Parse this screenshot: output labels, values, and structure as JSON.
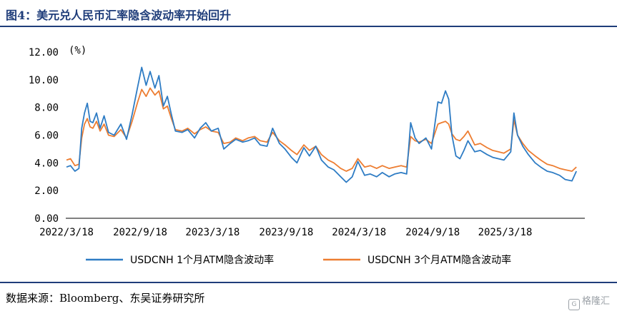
{
  "header": {
    "title": "图4：美元兑人民币汇率隐含波动率开始回升"
  },
  "footer": {
    "source": "数据来源：Bloomberg、东吴证券研究所",
    "watermark": "格隆汇"
  },
  "colors": {
    "title": "#1f3d7a",
    "series_1m": "#2e7cc4",
    "series_3m": "#ed7d31"
  },
  "chart_data": {
    "type": "line",
    "unit": "(%)",
    "ylim": [
      0,
      12
    ],
    "yticks": [
      "12.00",
      "10.00",
      "8.00",
      "6.00",
      "4.00",
      "2.00",
      "0.00"
    ],
    "xticks": [
      "2022/3/18",
      "2022/9/18",
      "2023/3/18",
      "2023/9/18",
      "2024/3/18",
      "2024/9/18",
      "2025/3/18"
    ],
    "grid": false,
    "legend_position": "bottom",
    "series": [
      {
        "name": "USDCNH 1个月ATM隐含波动率",
        "color": "#2e7cc4",
        "points": [
          [
            "2022-03-18",
            3.7
          ],
          [
            "2022-03-28",
            3.8
          ],
          [
            "2022-04-08",
            3.4
          ],
          [
            "2022-04-18",
            3.6
          ],
          [
            "2022-04-25",
            6.5
          ],
          [
            "2022-05-02",
            7.6
          ],
          [
            "2022-05-09",
            8.3
          ],
          [
            "2022-05-16",
            7.0
          ],
          [
            "2022-05-23",
            6.9
          ],
          [
            "2022-06-01",
            7.6
          ],
          [
            "2022-06-10",
            6.5
          ],
          [
            "2022-06-20",
            7.4
          ],
          [
            "2022-07-01",
            6.2
          ],
          [
            "2022-07-15",
            6.0
          ],
          [
            "2022-08-01",
            6.8
          ],
          [
            "2022-08-15",
            5.7
          ],
          [
            "2022-08-29",
            7.5
          ],
          [
            "2022-09-12",
            9.5
          ],
          [
            "2022-09-22",
            10.9
          ],
          [
            "2022-10-03",
            9.6
          ],
          [
            "2022-10-13",
            10.6
          ],
          [
            "2022-10-25",
            9.4
          ],
          [
            "2022-11-04",
            10.3
          ],
          [
            "2022-11-15",
            8.1
          ],
          [
            "2022-11-25",
            8.8
          ],
          [
            "2022-12-05",
            7.5
          ],
          [
            "2022-12-15",
            6.3
          ],
          [
            "2023-01-01",
            6.2
          ],
          [
            "2023-01-15",
            6.4
          ],
          [
            "2023-02-01",
            5.8
          ],
          [
            "2023-02-15",
            6.5
          ],
          [
            "2023-03-01",
            6.9
          ],
          [
            "2023-03-15",
            6.3
          ],
          [
            "2023-04-01",
            6.5
          ],
          [
            "2023-04-15",
            5.0
          ],
          [
            "2023-05-01",
            5.4
          ],
          [
            "2023-05-15",
            5.7
          ],
          [
            "2023-06-01",
            5.5
          ],
          [
            "2023-06-15",
            5.6
          ],
          [
            "2023-07-01",
            5.8
          ],
          [
            "2023-07-15",
            5.3
          ],
          [
            "2023-08-01",
            5.2
          ],
          [
            "2023-08-15",
            6.5
          ],
          [
            "2023-09-01",
            5.4
          ],
          [
            "2023-09-15",
            5.0
          ],
          [
            "2023-10-01",
            4.4
          ],
          [
            "2023-10-15",
            4.0
          ],
          [
            "2023-11-01",
            5.1
          ],
          [
            "2023-11-15",
            4.5
          ],
          [
            "2023-12-01",
            5.2
          ],
          [
            "2023-12-15",
            4.2
          ],
          [
            "2024-01-01",
            3.7
          ],
          [
            "2024-01-15",
            3.5
          ],
          [
            "2024-02-01",
            3.0
          ],
          [
            "2024-02-15",
            2.6
          ],
          [
            "2024-03-01",
            3.0
          ],
          [
            "2024-03-15",
            4.1
          ],
          [
            "2024-04-01",
            3.1
          ],
          [
            "2024-04-15",
            3.2
          ],
          [
            "2024-05-01",
            3.0
          ],
          [
            "2024-05-15",
            3.3
          ],
          [
            "2024-06-01",
            3.0
          ],
          [
            "2024-06-15",
            3.2
          ],
          [
            "2024-07-01",
            3.3
          ],
          [
            "2024-07-15",
            3.2
          ],
          [
            "2024-07-25",
            6.9
          ],
          [
            "2024-08-05",
            5.8
          ],
          [
            "2024-08-15",
            5.4
          ],
          [
            "2024-09-01",
            5.8
          ],
          [
            "2024-09-15",
            5.0
          ],
          [
            "2024-10-01",
            8.4
          ],
          [
            "2024-10-10",
            8.3
          ],
          [
            "2024-10-20",
            9.2
          ],
          [
            "2024-10-28",
            8.6
          ],
          [
            "2024-11-05",
            6.0
          ],
          [
            "2024-11-15",
            4.5
          ],
          [
            "2024-11-25",
            4.3
          ],
          [
            "2024-12-05",
            4.9
          ],
          [
            "2024-12-15",
            5.6
          ],
          [
            "2025-01-01",
            4.8
          ],
          [
            "2025-01-15",
            4.9
          ],
          [
            "2025-02-01",
            4.6
          ],
          [
            "2025-02-15",
            4.4
          ],
          [
            "2025-03-01",
            4.3
          ],
          [
            "2025-03-15",
            4.2
          ],
          [
            "2025-04-01",
            4.8
          ],
          [
            "2025-04-09",
            7.6
          ],
          [
            "2025-04-18",
            6.0
          ],
          [
            "2025-05-01",
            5.2
          ],
          [
            "2025-05-15",
            4.6
          ],
          [
            "2025-06-01",
            4.0
          ],
          [
            "2025-06-15",
            3.7
          ],
          [
            "2025-07-01",
            3.4
          ],
          [
            "2025-07-15",
            3.3
          ],
          [
            "2025-08-01",
            3.1
          ],
          [
            "2025-08-15",
            2.8
          ],
          [
            "2025-09-01",
            2.7
          ],
          [
            "2025-09-12",
            3.4
          ]
        ]
      },
      {
        "name": "USDCNH 3个月ATM隐含波动率",
        "color": "#ed7d31",
        "points": [
          [
            "2022-03-18",
            4.2
          ],
          [
            "2022-03-28",
            4.3
          ],
          [
            "2022-04-08",
            3.8
          ],
          [
            "2022-04-18",
            3.9
          ],
          [
            "2022-04-25",
            5.8
          ],
          [
            "2022-05-02",
            6.8
          ],
          [
            "2022-05-09",
            7.2
          ],
          [
            "2022-05-16",
            6.6
          ],
          [
            "2022-05-23",
            6.5
          ],
          [
            "2022-06-01",
            7.0
          ],
          [
            "2022-06-10",
            6.3
          ],
          [
            "2022-06-20",
            6.8
          ],
          [
            "2022-07-01",
            6.0
          ],
          [
            "2022-07-15",
            5.9
          ],
          [
            "2022-08-01",
            6.4
          ],
          [
            "2022-08-15",
            5.8
          ],
          [
            "2022-08-29",
            7.0
          ],
          [
            "2022-09-12",
            8.4
          ],
          [
            "2022-09-22",
            9.3
          ],
          [
            "2022-10-03",
            8.8
          ],
          [
            "2022-10-13",
            9.4
          ],
          [
            "2022-10-25",
            8.9
          ],
          [
            "2022-11-04",
            9.2
          ],
          [
            "2022-11-15",
            7.9
          ],
          [
            "2022-11-25",
            8.1
          ],
          [
            "2022-12-05",
            7.2
          ],
          [
            "2022-12-15",
            6.4
          ],
          [
            "2023-01-01",
            6.3
          ],
          [
            "2023-01-15",
            6.5
          ],
          [
            "2023-02-01",
            6.1
          ],
          [
            "2023-02-15",
            6.4
          ],
          [
            "2023-03-01",
            6.6
          ],
          [
            "2023-03-15",
            6.3
          ],
          [
            "2023-04-01",
            6.2
          ],
          [
            "2023-04-15",
            5.4
          ],
          [
            "2023-05-01",
            5.5
          ],
          [
            "2023-05-15",
            5.8
          ],
          [
            "2023-06-01",
            5.6
          ],
          [
            "2023-06-15",
            5.8
          ],
          [
            "2023-07-01",
            5.9
          ],
          [
            "2023-07-15",
            5.6
          ],
          [
            "2023-08-01",
            5.5
          ],
          [
            "2023-08-15",
            6.2
          ],
          [
            "2023-09-01",
            5.6
          ],
          [
            "2023-09-15",
            5.3
          ],
          [
            "2023-10-01",
            4.9
          ],
          [
            "2023-10-15",
            4.6
          ],
          [
            "2023-11-01",
            5.3
          ],
          [
            "2023-11-15",
            4.9
          ],
          [
            "2023-12-01",
            5.2
          ],
          [
            "2023-12-15",
            4.6
          ],
          [
            "2024-01-01",
            4.2
          ],
          [
            "2024-01-15",
            4.0
          ],
          [
            "2024-02-01",
            3.6
          ],
          [
            "2024-02-15",
            3.4
          ],
          [
            "2024-03-01",
            3.6
          ],
          [
            "2024-03-15",
            4.3
          ],
          [
            "2024-04-01",
            3.7
          ],
          [
            "2024-04-15",
            3.8
          ],
          [
            "2024-05-01",
            3.6
          ],
          [
            "2024-05-15",
            3.8
          ],
          [
            "2024-06-01",
            3.6
          ],
          [
            "2024-06-15",
            3.7
          ],
          [
            "2024-07-01",
            3.8
          ],
          [
            "2024-07-15",
            3.7
          ],
          [
            "2024-07-25",
            5.9
          ],
          [
            "2024-08-05",
            5.6
          ],
          [
            "2024-08-15",
            5.5
          ],
          [
            "2024-09-01",
            5.7
          ],
          [
            "2024-09-15",
            5.4
          ],
          [
            "2024-10-01",
            6.8
          ],
          [
            "2024-10-10",
            6.9
          ],
          [
            "2024-10-20",
            7.0
          ],
          [
            "2024-10-28",
            6.8
          ],
          [
            "2024-11-05",
            6.1
          ],
          [
            "2024-11-15",
            5.7
          ],
          [
            "2024-11-25",
            5.6
          ],
          [
            "2024-12-05",
            5.9
          ],
          [
            "2024-12-15",
            6.3
          ],
          [
            "2025-01-01",
            5.3
          ],
          [
            "2025-01-15",
            5.4
          ],
          [
            "2025-02-01",
            5.1
          ],
          [
            "2025-02-15",
            4.9
          ],
          [
            "2025-03-01",
            4.8
          ],
          [
            "2025-03-15",
            4.7
          ],
          [
            "2025-04-01",
            5.0
          ],
          [
            "2025-04-09",
            7.1
          ],
          [
            "2025-04-18",
            6.0
          ],
          [
            "2025-05-01",
            5.4
          ],
          [
            "2025-05-15",
            4.9
          ],
          [
            "2025-06-01",
            4.5
          ],
          [
            "2025-06-15",
            4.2
          ],
          [
            "2025-07-01",
            3.9
          ],
          [
            "2025-07-15",
            3.8
          ],
          [
            "2025-08-01",
            3.6
          ],
          [
            "2025-08-15",
            3.5
          ],
          [
            "2025-09-01",
            3.4
          ],
          [
            "2025-09-12",
            3.7
          ]
        ]
      }
    ]
  }
}
